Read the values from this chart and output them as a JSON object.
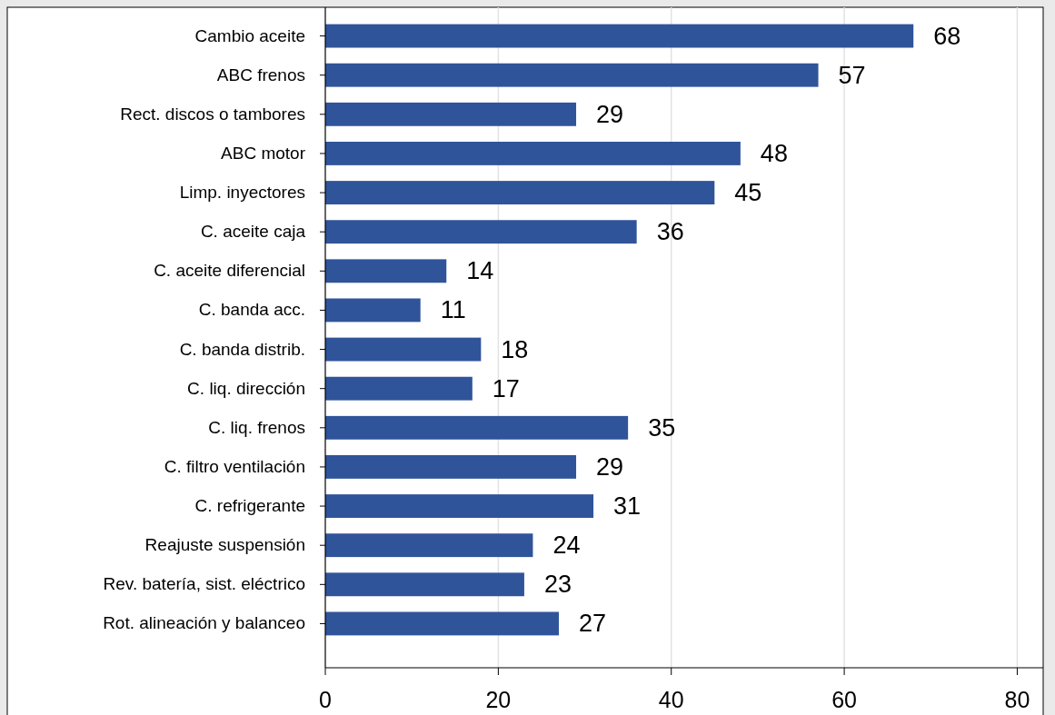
{
  "chart_data": {
    "type": "bar",
    "orientation": "horizontal",
    "categories": [
      "Cambio aceite",
      "ABC frenos",
      "Rect. discos o tambores",
      "ABC motor",
      "Limp. inyectores",
      "C. aceite caja",
      "C. aceite diferencial",
      "C. banda acc.",
      "C. banda distrib.",
      "C. liq. dirección",
      "C. liq. frenos",
      "C. filtro ventilación",
      "C. refrigerante",
      "Reajuste suspensión",
      "Rev. batería, sist. eléctrico",
      "Rot. alineación y balanceo"
    ],
    "values": [
      68,
      57,
      29,
      48,
      45,
      36,
      14,
      11,
      18,
      17,
      35,
      29,
      31,
      24,
      23,
      27
    ],
    "color": "#30549a",
    "xlim": [
      0,
      83
    ],
    "xticks": [
      0,
      20,
      40,
      60,
      80
    ],
    "grid": "x",
    "data_labels": true
  }
}
